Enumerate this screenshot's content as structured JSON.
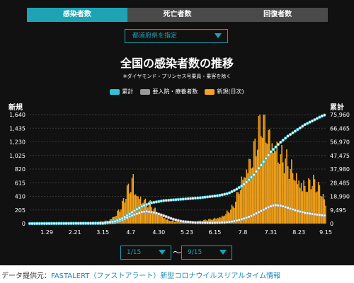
{
  "tabs": [
    {
      "label": "感染者数",
      "active": true
    },
    {
      "label": "死亡者数",
      "active": false
    },
    {
      "label": "回復者数",
      "active": false
    }
  ],
  "prefecture_select": {
    "label": "都道府県を指定"
  },
  "date_range": {
    "from": "1/15",
    "separator": "〜",
    "to": "9/15"
  },
  "credit": {
    "prefix": "データ提供元：",
    "link": "FASTALERT（ファストアラート）新型コロナウイルスリアルタイム情報"
  },
  "colors": {
    "accent": "#1ea3b4",
    "cumulative": "#2ec3d6",
    "hospitalized": "#9a9a9a",
    "new": "#f5a31a"
  },
  "chart_data": {
    "type": "bar",
    "title": "全国の感染者数の推移",
    "subtitle": "※ダイヤモンド・プリンセス号乗員・乗客を除く",
    "ylabel_left": "新規",
    "ylabel_right": "累計",
    "legend": [
      "累計",
      "要入院・療養者数",
      "新規(日次)"
    ],
    "legend_position": "top-center",
    "grid": "horizontal-dashed",
    "x_ticks": [
      "1.29",
      "2.21",
      "3.15",
      "4.7",
      "4.30",
      "5.23",
      "6.15",
      "7.8",
      "7.31",
      "8.23",
      "9.15"
    ],
    "y_left": {
      "ticks": [
        0,
        205,
        410,
        615,
        820,
        1025,
        1230,
        1435,
        1640
      ],
      "tick_labels": [
        "0",
        "205",
        "410",
        "615",
        "820",
        "1,025",
        "1,230",
        "1,435",
        "1,640"
      ],
      "ylim": [
        0,
        1640
      ]
    },
    "y_right": {
      "ticks": [
        0,
        9495,
        18990,
        28485,
        37980,
        47475,
        56970,
        66465,
        75960
      ],
      "tick_labels": [
        "0",
        "9,495",
        "18,990",
        "28,485",
        "37,980",
        "47,475",
        "56,970",
        "66,465",
        "75,960"
      ],
      "ylim": [
        0,
        75960
      ]
    },
    "x_range": [
      "1/15",
      "9/15"
    ],
    "new_daily_keypoints": [
      [
        0,
        0
      ],
      [
        40,
        2
      ],
      [
        50,
        10
      ],
      [
        58,
        30
      ],
      [
        65,
        50
      ],
      [
        70,
        120
      ],
      [
        75,
        250
      ],
      [
        78,
        380
      ],
      [
        80,
        500
      ],
      [
        82,
        560
      ],
      [
        84,
        650
      ],
      [
        85,
        700
      ],
      [
        86,
        520
      ],
      [
        88,
        450
      ],
      [
        90,
        400
      ],
      [
        92,
        380
      ],
      [
        94,
        350
      ],
      [
        96,
        300
      ],
      [
        98,
        320
      ],
      [
        100,
        260
      ],
      [
        103,
        200
      ],
      [
        106,
        150
      ],
      [
        110,
        100
      ],
      [
        113,
        60
      ],
      [
        116,
        40
      ],
      [
        120,
        30
      ],
      [
        130,
        25
      ],
      [
        140,
        40
      ],
      [
        150,
        70
      ],
      [
        158,
        110
      ],
      [
        163,
        180
      ],
      [
        167,
        250
      ],
      [
        170,
        400
      ],
      [
        173,
        600
      ],
      [
        176,
        750
      ],
      [
        179,
        900
      ],
      [
        182,
        1000
      ],
      [
        185,
        1150
      ],
      [
        188,
        1400
      ],
      [
        190,
        1550
      ],
      [
        192,
        1600
      ],
      [
        195,
        1450
      ],
      [
        198,
        1300
      ],
      [
        201,
        1200
      ],
      [
        204,
        1100
      ],
      [
        207,
        1000
      ],
      [
        210,
        950
      ],
      [
        213,
        850
      ],
      [
        216,
        800
      ],
      [
        219,
        700
      ],
      [
        222,
        650
      ],
      [
        225,
        600
      ],
      [
        228,
        550
      ],
      [
        231,
        650
      ],
      [
        234,
        600
      ],
      [
        237,
        550
      ],
      [
        240,
        500
      ],
      [
        243,
        300
      ]
    ],
    "cumulative_keypoints": [
      [
        0,
        0
      ],
      [
        60,
        300
      ],
      [
        70,
        1500
      ],
      [
        77,
        4000
      ],
      [
        85,
        8500
      ],
      [
        92,
        12000
      ],
      [
        100,
        14500
      ],
      [
        110,
        16000
      ],
      [
        125,
        17000
      ],
      [
        140,
        18000
      ],
      [
        155,
        19500
      ],
      [
        163,
        21000
      ],
      [
        170,
        24000
      ],
      [
        177,
        28000
      ],
      [
        184,
        34000
      ],
      [
        191,
        42000
      ],
      [
        198,
        50000
      ],
      [
        205,
        56000
      ],
      [
        212,
        61000
      ],
      [
        219,
        65000
      ],
      [
        226,
        69000
      ],
      [
        233,
        72000
      ],
      [
        240,
        75000
      ],
      [
        243,
        75960
      ]
    ],
    "hospitalized_keypoints": [
      [
        0,
        0
      ],
      [
        60,
        100
      ],
      [
        70,
        800
      ],
      [
        77,
        3000
      ],
      [
        85,
        6000
      ],
      [
        92,
        8000
      ],
      [
        96,
        8500
      ],
      [
        103,
        7500
      ],
      [
        110,
        5500
      ],
      [
        118,
        3000
      ],
      [
        125,
        1500
      ],
      [
        135,
        700
      ],
      [
        150,
        600
      ],
      [
        160,
        800
      ],
      [
        167,
        1500
      ],
      [
        174,
        3000
      ],
      [
        181,
        5000
      ],
      [
        188,
        8000
      ],
      [
        195,
        11000
      ],
      [
        199,
        12500
      ],
      [
        202,
        12800
      ],
      [
        206,
        12500
      ],
      [
        212,
        11000
      ],
      [
        219,
        9000
      ],
      [
        226,
        7500
      ],
      [
        233,
        6500
      ],
      [
        240,
        5800
      ],
      [
        243,
        5600
      ]
    ]
  }
}
